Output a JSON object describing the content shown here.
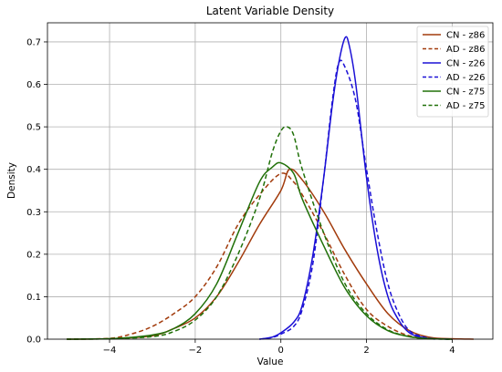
{
  "chart_data": {
    "type": "line",
    "title": "Latent Variable Density",
    "xlabel": "Value",
    "ylabel": "Density",
    "xlim": [
      -5.45,
      4.95
    ],
    "ylim": [
      0,
      0.745
    ],
    "xticks": [
      -4,
      -2,
      0,
      2,
      4
    ],
    "xtick_labels": [
      "−4",
      "−2",
      "0",
      "2",
      "4"
    ],
    "yticks": [
      0.0,
      0.1,
      0.2,
      0.3,
      0.4,
      0.5,
      0.6,
      0.7
    ],
    "ytick_labels": [
      "0.0",
      "0.1",
      "0.2",
      "0.3",
      "0.4",
      "0.5",
      "0.6",
      "0.7"
    ],
    "grid": true,
    "legend_position": "top-right",
    "series": [
      {
        "name": "CN - z86",
        "color": "#a23b0c",
        "dash": "solid",
        "points": [
          [
            -5.0,
            0.0
          ],
          [
            -4.0,
            0.001
          ],
          [
            -3.0,
            0.008
          ],
          [
            -2.5,
            0.025
          ],
          [
            -2.0,
            0.05
          ],
          [
            -1.5,
            0.1
          ],
          [
            -1.0,
            0.18
          ],
          [
            -0.5,
            0.27
          ],
          [
            0.0,
            0.35
          ],
          [
            0.2,
            0.4
          ],
          [
            0.5,
            0.375
          ],
          [
            1.0,
            0.3
          ],
          [
            1.5,
            0.21
          ],
          [
            2.0,
            0.13
          ],
          [
            2.5,
            0.06
          ],
          [
            3.0,
            0.02
          ],
          [
            3.5,
            0.004
          ],
          [
            4.0,
            0.001
          ],
          [
            4.5,
            0.0
          ]
        ]
      },
      {
        "name": "AD - z86",
        "color": "#a23b0c",
        "dash": "dashed",
        "points": [
          [
            -5.0,
            0.0
          ],
          [
            -4.0,
            0.002
          ],
          [
            -3.5,
            0.012
          ],
          [
            -3.0,
            0.03
          ],
          [
            -2.5,
            0.06
          ],
          [
            -2.0,
            0.1
          ],
          [
            -1.5,
            0.17
          ],
          [
            -1.0,
            0.27
          ],
          [
            -0.5,
            0.34
          ],
          [
            0.0,
            0.39
          ],
          [
            0.3,
            0.37
          ],
          [
            0.5,
            0.34
          ],
          [
            1.0,
            0.25
          ],
          [
            1.5,
            0.15
          ],
          [
            2.0,
            0.07
          ],
          [
            2.5,
            0.03
          ],
          [
            3.0,
            0.008
          ],
          [
            3.5,
            0.002
          ],
          [
            4.0,
            0.0
          ]
        ]
      },
      {
        "name": "CN - z26",
        "color": "#1b10d6",
        "dash": "solid",
        "points": [
          [
            -0.5,
            0.0
          ],
          [
            -0.2,
            0.005
          ],
          [
            0.0,
            0.015
          ],
          [
            0.3,
            0.04
          ],
          [
            0.5,
            0.08
          ],
          [
            0.75,
            0.2
          ],
          [
            1.0,
            0.38
          ],
          [
            1.2,
            0.55
          ],
          [
            1.35,
            0.65
          ],
          [
            1.5,
            0.71
          ],
          [
            1.6,
            0.69
          ],
          [
            1.75,
            0.6
          ],
          [
            2.0,
            0.38
          ],
          [
            2.25,
            0.21
          ],
          [
            2.5,
            0.1
          ],
          [
            2.75,
            0.045
          ],
          [
            3.0,
            0.015
          ],
          [
            3.3,
            0.004
          ],
          [
            3.6,
            0.0
          ]
        ]
      },
      {
        "name": "AD - z26",
        "color": "#1b10d6",
        "dash": "dashed",
        "points": [
          [
            -0.5,
            0.0
          ],
          [
            -0.2,
            0.004
          ],
          [
            0.0,
            0.012
          ],
          [
            0.3,
            0.03
          ],
          [
            0.5,
            0.07
          ],
          [
            0.75,
            0.18
          ],
          [
            1.0,
            0.38
          ],
          [
            1.2,
            0.56
          ],
          [
            1.35,
            0.65
          ],
          [
            1.5,
            0.64
          ],
          [
            1.75,
            0.56
          ],
          [
            2.0,
            0.4
          ],
          [
            2.25,
            0.25
          ],
          [
            2.5,
            0.13
          ],
          [
            2.75,
            0.06
          ],
          [
            3.0,
            0.02
          ],
          [
            3.3,
            0.006
          ],
          [
            3.6,
            0.001
          ],
          [
            4.0,
            0.0
          ]
        ]
      },
      {
        "name": "CN - z75",
        "color": "#207008",
        "dash": "solid",
        "points": [
          [
            -5.0,
            0.0
          ],
          [
            -4.0,
            0.001
          ],
          [
            -3.0,
            0.01
          ],
          [
            -2.5,
            0.025
          ],
          [
            -2.0,
            0.06
          ],
          [
            -1.5,
            0.13
          ],
          [
            -1.0,
            0.25
          ],
          [
            -0.5,
            0.37
          ],
          [
            -0.2,
            0.405
          ],
          [
            0.0,
            0.415
          ],
          [
            0.3,
            0.39
          ],
          [
            0.5,
            0.33
          ],
          [
            1.0,
            0.22
          ],
          [
            1.5,
            0.12
          ],
          [
            2.0,
            0.055
          ],
          [
            2.5,
            0.02
          ],
          [
            3.0,
            0.006
          ],
          [
            3.5,
            0.001
          ],
          [
            4.0,
            0.0
          ]
        ]
      },
      {
        "name": "AD - z75",
        "color": "#207008",
        "dash": "dashed",
        "points": [
          [
            -5.0,
            0.0
          ],
          [
            -4.0,
            0.001
          ],
          [
            -3.0,
            0.006
          ],
          [
            -2.5,
            0.018
          ],
          [
            -2.0,
            0.045
          ],
          [
            -1.5,
            0.1
          ],
          [
            -1.0,
            0.2
          ],
          [
            -0.5,
            0.33
          ],
          [
            -0.2,
            0.44
          ],
          [
            0.0,
            0.49
          ],
          [
            0.15,
            0.5
          ],
          [
            0.3,
            0.48
          ],
          [
            0.5,
            0.4
          ],
          [
            1.0,
            0.25
          ],
          [
            1.5,
            0.13
          ],
          [
            2.0,
            0.06
          ],
          [
            2.5,
            0.022
          ],
          [
            3.0,
            0.006
          ],
          [
            3.5,
            0.001
          ],
          [
            4.0,
            0.0
          ]
        ]
      }
    ]
  }
}
